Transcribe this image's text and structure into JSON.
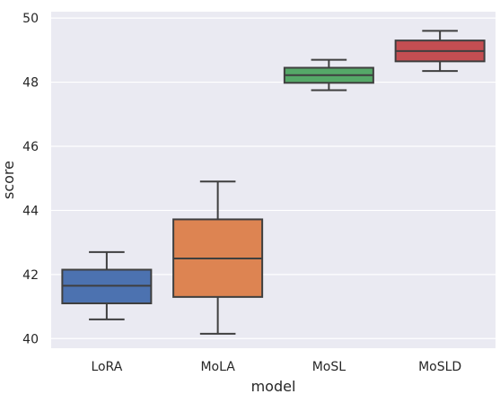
{
  "chart_data": {
    "type": "box",
    "xlabel": "model",
    "ylabel": "score",
    "ylim": [
      39.7,
      50.2
    ],
    "yticks": [
      40,
      42,
      44,
      46,
      48,
      50
    ],
    "grid": true,
    "categories": [
      "LoRA",
      "MoLA",
      "MoSL",
      "MoSLD"
    ],
    "boxes": [
      {
        "category": "LoRA",
        "color": "#4c72b0",
        "whisker_low": 40.6,
        "q1": 41.1,
        "median": 41.65,
        "q3": 42.15,
        "whisker_high": 42.7
      },
      {
        "category": "MoLA",
        "color": "#dd8452",
        "whisker_low": 40.15,
        "q1": 41.3,
        "median": 42.5,
        "q3": 43.72,
        "whisker_high": 44.9
      },
      {
        "category": "MoSL",
        "color": "#55a868",
        "whisker_low": 47.75,
        "q1": 47.98,
        "median": 48.22,
        "q3": 48.45,
        "whisker_high": 48.7
      },
      {
        "category": "MoSLD",
        "color": "#c44e52",
        "whisker_low": 48.35,
        "q1": 48.65,
        "median": 48.97,
        "q3": 49.3,
        "whisker_high": 49.6
      }
    ],
    "colors": {
      "plot_background": "#eaeaf2",
      "grid": "#ffffff",
      "line": "#3f3f3f"
    }
  }
}
